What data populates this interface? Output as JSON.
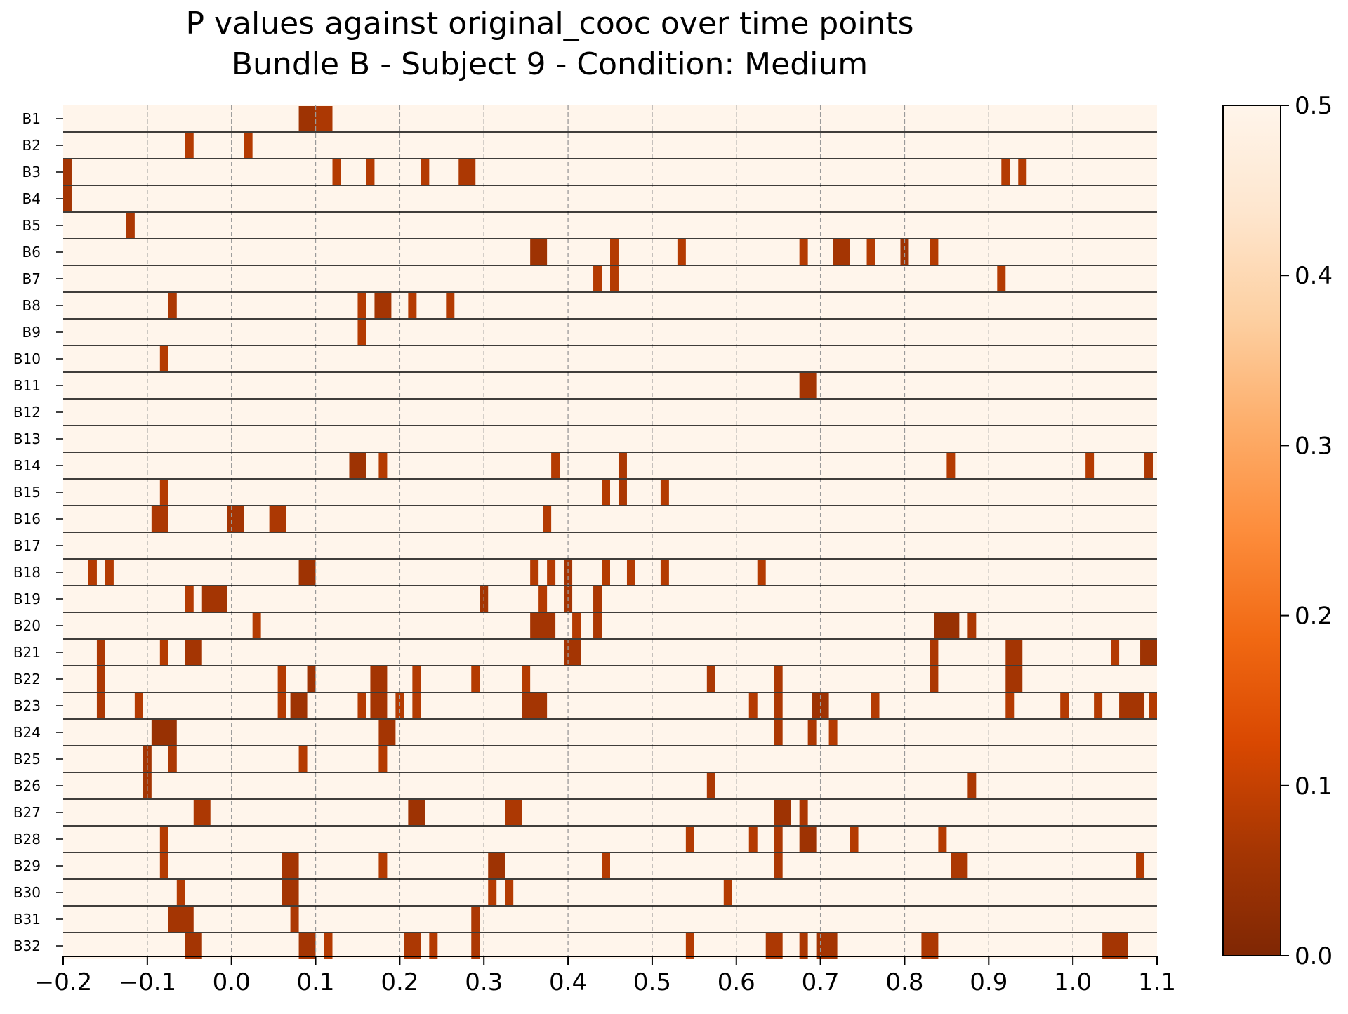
{
  "chart_data": {
    "type": "heatmap",
    "title": "P values against original_cooc over time points",
    "subtitle": "Bundle B - Subject 9 - Condition: Medium",
    "xlabel": "",
    "ylabel": "",
    "xlim": [
      -0.2,
      1.1
    ],
    "x_ticks": [
      "-0.2",
      "-0.1",
      "0.0",
      "0.1",
      "0.2",
      "0.3",
      "0.4",
      "0.5",
      "0.6",
      "0.7",
      "0.8",
      "0.9",
      "1.0",
      "1.1"
    ],
    "x_tick_values": [
      -0.2,
      -0.1,
      0.0,
      0.1,
      0.2,
      0.3,
      0.4,
      0.5,
      0.6,
      0.7,
      0.8,
      0.9,
      1.0,
      1.1
    ],
    "grid": "vertical dashed at x ticks",
    "background_value": 0.5,
    "colorbar": {
      "colormap": "Oranges_r",
      "range": [
        0.0,
        0.5
      ],
      "ticks": [
        "0.0",
        "0.1",
        "0.2",
        "0.3",
        "0.4",
        "0.5"
      ],
      "tick_values": [
        0.0,
        0.1,
        0.2,
        0.3,
        0.4,
        0.5
      ],
      "colors": [
        "#7f2704",
        "#a63603",
        "#d94801",
        "#f16913",
        "#fd8d3c",
        "#fdae6b",
        "#fdd0a2",
        "#fee6ce",
        "#fff5eb"
      ]
    },
    "bin_width": 0.01,
    "rows": [
      {
        "label": "B1",
        "segments": [
          [
            0.08,
            0.1,
            0.05
          ],
          [
            0.1,
            0.12,
            0.07
          ]
        ]
      },
      {
        "label": "B2",
        "segments": [
          [
            -0.055,
            -0.045,
            0.08
          ],
          [
            0.015,
            0.025,
            0.08
          ]
        ]
      },
      {
        "label": "B3",
        "segments": [
          [
            -0.2,
            -0.19,
            0.06
          ],
          [
            0.12,
            0.13,
            0.08
          ],
          [
            0.16,
            0.17,
            0.08
          ],
          [
            0.225,
            0.235,
            0.08
          ],
          [
            0.27,
            0.29,
            0.07
          ],
          [
            0.915,
            0.925,
            0.08
          ],
          [
            0.935,
            0.945,
            0.08
          ]
        ]
      },
      {
        "label": "B4",
        "segments": [
          [
            -0.2,
            -0.19,
            0.06
          ]
        ]
      },
      {
        "label": "B5",
        "segments": [
          [
            -0.125,
            -0.115,
            0.07
          ]
        ]
      },
      {
        "label": "B6",
        "segments": [
          [
            0.355,
            0.375,
            0.05
          ],
          [
            0.45,
            0.46,
            0.08
          ],
          [
            0.53,
            0.54,
            0.08
          ],
          [
            0.675,
            0.685,
            0.08
          ],
          [
            0.715,
            0.735,
            0.06
          ],
          [
            0.755,
            0.765,
            0.08
          ],
          [
            0.795,
            0.805,
            0.05
          ],
          [
            0.83,
            0.84,
            0.08
          ]
        ]
      },
      {
        "label": "B7",
        "segments": [
          [
            0.43,
            0.44,
            0.08
          ],
          [
            0.45,
            0.46,
            0.08
          ],
          [
            0.91,
            0.92,
            0.08
          ]
        ]
      },
      {
        "label": "B8",
        "segments": [
          [
            -0.075,
            -0.065,
            0.07
          ],
          [
            0.15,
            0.16,
            0.08
          ],
          [
            0.17,
            0.19,
            0.06
          ],
          [
            0.21,
            0.22,
            0.08
          ],
          [
            0.255,
            0.265,
            0.08
          ]
        ]
      },
      {
        "label": "B9",
        "segments": [
          [
            0.15,
            0.16,
            0.08
          ]
        ]
      },
      {
        "label": "B10",
        "segments": [
          [
            -0.085,
            -0.075,
            0.08
          ]
        ]
      },
      {
        "label": "B11",
        "segments": [
          [
            0.675,
            0.695,
            0.06
          ]
        ]
      },
      {
        "label": "B12",
        "segments": []
      },
      {
        "label": "B13",
        "segments": []
      },
      {
        "label": "B14",
        "segments": [
          [
            0.14,
            0.16,
            0.05
          ],
          [
            0.175,
            0.185,
            0.08
          ],
          [
            0.38,
            0.39,
            0.08
          ],
          [
            0.46,
            0.47,
            0.07
          ],
          [
            0.85,
            0.86,
            0.08
          ],
          [
            1.015,
            1.025,
            0.08
          ],
          [
            1.085,
            1.095,
            0.07
          ]
        ]
      },
      {
        "label": "B15",
        "segments": [
          [
            -0.085,
            -0.075,
            0.08
          ],
          [
            0.44,
            0.45,
            0.08
          ],
          [
            0.46,
            0.47,
            0.07
          ],
          [
            0.51,
            0.52,
            0.08
          ]
        ]
      },
      {
        "label": "B16",
        "segments": [
          [
            -0.095,
            -0.075,
            0.07
          ],
          [
            -0.005,
            0.015,
            0.06
          ],
          [
            0.045,
            0.065,
            0.07
          ],
          [
            0.37,
            0.38,
            0.08
          ]
        ]
      },
      {
        "label": "B17",
        "segments": []
      },
      {
        "label": "B18",
        "segments": [
          [
            -0.17,
            -0.16,
            0.08
          ],
          [
            -0.15,
            -0.14,
            0.08
          ],
          [
            0.08,
            0.1,
            0.05
          ],
          [
            0.355,
            0.365,
            0.08
          ],
          [
            0.375,
            0.385,
            0.08
          ],
          [
            0.395,
            0.405,
            0.06
          ],
          [
            0.44,
            0.45,
            0.08
          ],
          [
            0.47,
            0.48,
            0.08
          ],
          [
            0.51,
            0.52,
            0.08
          ],
          [
            0.625,
            0.635,
            0.08
          ]
        ]
      },
      {
        "label": "B19",
        "segments": [
          [
            -0.055,
            -0.045,
            0.08
          ],
          [
            -0.035,
            -0.005,
            0.06
          ],
          [
            0.295,
            0.305,
            0.06
          ],
          [
            0.365,
            0.375,
            0.08
          ],
          [
            0.395,
            0.405,
            0.06
          ],
          [
            0.43,
            0.44,
            0.07
          ]
        ]
      },
      {
        "label": "B20",
        "segments": [
          [
            0.025,
            0.035,
            0.08
          ],
          [
            0.355,
            0.385,
            0.06
          ],
          [
            0.405,
            0.415,
            0.08
          ],
          [
            0.43,
            0.44,
            0.07
          ],
          [
            0.835,
            0.865,
            0.04
          ],
          [
            0.875,
            0.885,
            0.07
          ]
        ]
      },
      {
        "label": "B21",
        "segments": [
          [
            -0.16,
            -0.15,
            0.07
          ],
          [
            -0.085,
            -0.075,
            0.08
          ],
          [
            -0.055,
            -0.035,
            0.06
          ],
          [
            0.395,
            0.415,
            0.06
          ],
          [
            0.83,
            0.84,
            0.07
          ],
          [
            0.92,
            0.94,
            0.06
          ],
          [
            1.045,
            1.055,
            0.08
          ],
          [
            1.08,
            1.1,
            0.05
          ]
        ]
      },
      {
        "label": "B22",
        "segments": [
          [
            -0.16,
            -0.15,
            0.07
          ],
          [
            0.055,
            0.065,
            0.08
          ],
          [
            0.09,
            0.1,
            0.05
          ],
          [
            0.165,
            0.185,
            0.06
          ],
          [
            0.215,
            0.225,
            0.08
          ],
          [
            0.285,
            0.295,
            0.08
          ],
          [
            0.345,
            0.355,
            0.08
          ],
          [
            0.565,
            0.575,
            0.07
          ],
          [
            0.645,
            0.655,
            0.07
          ],
          [
            0.83,
            0.84,
            0.07
          ],
          [
            0.92,
            0.94,
            0.06
          ]
        ]
      },
      {
        "label": "B23",
        "segments": [
          [
            -0.16,
            -0.15,
            0.07
          ],
          [
            -0.115,
            -0.105,
            0.08
          ],
          [
            0.055,
            0.065,
            0.08
          ],
          [
            0.07,
            0.09,
            0.05
          ],
          [
            0.15,
            0.16,
            0.08
          ],
          [
            0.165,
            0.185,
            0.06
          ],
          [
            0.195,
            0.205,
            0.08
          ],
          [
            0.215,
            0.225,
            0.08
          ],
          [
            0.345,
            0.375,
            0.06
          ],
          [
            0.615,
            0.625,
            0.08
          ],
          [
            0.645,
            0.655,
            0.07
          ],
          [
            0.69,
            0.71,
            0.05
          ],
          [
            0.76,
            0.77,
            0.08
          ],
          [
            0.92,
            0.93,
            0.08
          ],
          [
            0.985,
            0.995,
            0.08
          ],
          [
            1.025,
            1.035,
            0.08
          ],
          [
            1.055,
            1.085,
            0.06
          ],
          [
            1.09,
            1.1,
            0.08
          ]
        ]
      },
      {
        "label": "B24",
        "segments": [
          [
            -0.095,
            -0.065,
            0.04
          ],
          [
            0.175,
            0.195,
            0.06
          ],
          [
            0.645,
            0.655,
            0.07
          ],
          [
            0.685,
            0.695,
            0.07
          ],
          [
            0.71,
            0.72,
            0.08
          ]
        ]
      },
      {
        "label": "B25",
        "segments": [
          [
            -0.105,
            -0.095,
            0.06
          ],
          [
            -0.075,
            -0.065,
            0.07
          ],
          [
            0.08,
            0.09,
            0.08
          ],
          [
            0.175,
            0.185,
            0.08
          ]
        ]
      },
      {
        "label": "B26",
        "segments": [
          [
            -0.105,
            -0.095,
            0.06
          ],
          [
            0.565,
            0.575,
            0.07
          ],
          [
            0.875,
            0.885,
            0.07
          ]
        ]
      },
      {
        "label": "B27",
        "segments": [
          [
            -0.045,
            -0.025,
            0.07
          ],
          [
            0.21,
            0.23,
            0.05
          ],
          [
            0.325,
            0.345,
            0.07
          ],
          [
            0.645,
            0.665,
            0.05
          ],
          [
            0.675,
            0.685,
            0.07
          ]
        ]
      },
      {
        "label": "B28",
        "segments": [
          [
            -0.085,
            -0.075,
            0.08
          ],
          [
            0.54,
            0.55,
            0.08
          ],
          [
            0.615,
            0.625,
            0.08
          ],
          [
            0.645,
            0.655,
            0.07
          ],
          [
            0.675,
            0.695,
            0.05
          ],
          [
            0.735,
            0.745,
            0.08
          ],
          [
            0.84,
            0.85,
            0.08
          ]
        ]
      },
      {
        "label": "B29",
        "segments": [
          [
            -0.085,
            -0.075,
            0.08
          ],
          [
            0.06,
            0.08,
            0.06
          ],
          [
            0.175,
            0.185,
            0.08
          ],
          [
            0.305,
            0.325,
            0.05
          ],
          [
            0.44,
            0.45,
            0.08
          ],
          [
            0.645,
            0.655,
            0.07
          ],
          [
            0.855,
            0.875,
            0.07
          ],
          [
            1.075,
            1.085,
            0.08
          ]
        ]
      },
      {
        "label": "B30",
        "segments": [
          [
            -0.065,
            -0.055,
            0.08
          ],
          [
            0.06,
            0.08,
            0.06
          ],
          [
            0.305,
            0.315,
            0.08
          ],
          [
            0.325,
            0.335,
            0.08
          ],
          [
            0.585,
            0.595,
            0.08
          ]
        ]
      },
      {
        "label": "B31",
        "segments": [
          [
            -0.075,
            -0.045,
            0.06
          ],
          [
            0.07,
            0.08,
            0.07
          ],
          [
            0.285,
            0.295,
            0.07
          ]
        ]
      },
      {
        "label": "B32",
        "segments": [
          [
            -0.055,
            -0.035,
            0.06
          ],
          [
            0.08,
            0.1,
            0.06
          ],
          [
            0.11,
            0.12,
            0.08
          ],
          [
            0.205,
            0.225,
            0.07
          ],
          [
            0.235,
            0.245,
            0.08
          ],
          [
            0.285,
            0.295,
            0.07
          ],
          [
            0.54,
            0.55,
            0.08
          ],
          [
            0.635,
            0.655,
            0.07
          ],
          [
            0.675,
            0.685,
            0.07
          ],
          [
            0.695,
            0.72,
            0.06
          ],
          [
            0.82,
            0.84,
            0.07
          ],
          [
            1.035,
            1.065,
            0.06
          ]
        ]
      }
    ]
  }
}
